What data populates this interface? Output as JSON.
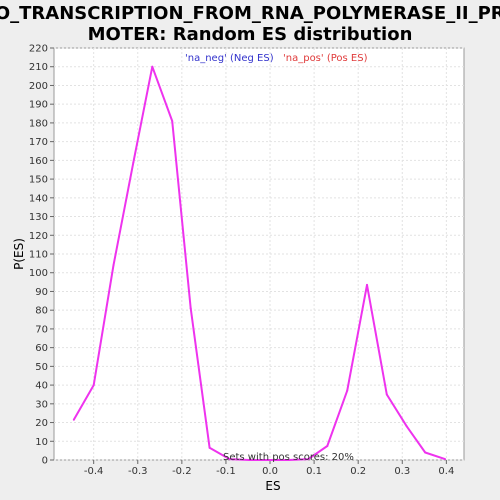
{
  "chart_data": {
    "type": "line",
    "title_line1": "GO_TRANSCRIPTION_FROM_RNA_POLYMERASE_II_PRO",
    "title_line2": "MOTER: Random ES distribution",
    "xlabel": "ES",
    "ylabel": "P(ES)",
    "xlim": [
      -0.49,
      0.44
    ],
    "ylim": [
      0,
      220
    ],
    "x_ticks": [
      -0.4,
      -0.3,
      -0.2,
      -0.1,
      0.0,
      0.1,
      0.2,
      0.3,
      0.4
    ],
    "x_tick_labels": [
      "-0.4",
      "-0.3",
      "-0.2",
      "-0.1",
      "0.0",
      "0.1",
      "0.2",
      "0.3",
      "0.4"
    ],
    "y_ticks": [
      0,
      10,
      20,
      30,
      40,
      50,
      60,
      70,
      80,
      90,
      100,
      110,
      120,
      130,
      140,
      150,
      160,
      170,
      180,
      190,
      200,
      210,
      220
    ],
    "grid": true,
    "legend": [
      {
        "label": "'na_neg' (Neg ES)",
        "color": "#3333cc"
      },
      {
        "label": "'na_pos' (Pos ES)",
        "color": "#e03a3a"
      }
    ],
    "annotation": "Sets with pos scores: 20%",
    "series": [
      {
        "color": "#ee33ee",
        "x": [
          -0.445,
          -0.4,
          -0.355,
          -0.31,
          -0.267,
          -0.222,
          -0.18,
          -0.137,
          -0.092,
          -0.047,
          -0.003,
          0.043,
          0.087,
          0.13,
          0.175,
          0.22,
          0.265,
          0.31,
          0.352,
          0.397
        ],
        "y": [
          21.5,
          40,
          104,
          159,
          210,
          181,
          81,
          6.5,
          0.5,
          0,
          0,
          0,
          0.5,
          7.5,
          37,
          93.5,
          35,
          18,
          4,
          0.5
        ]
      }
    ]
  }
}
